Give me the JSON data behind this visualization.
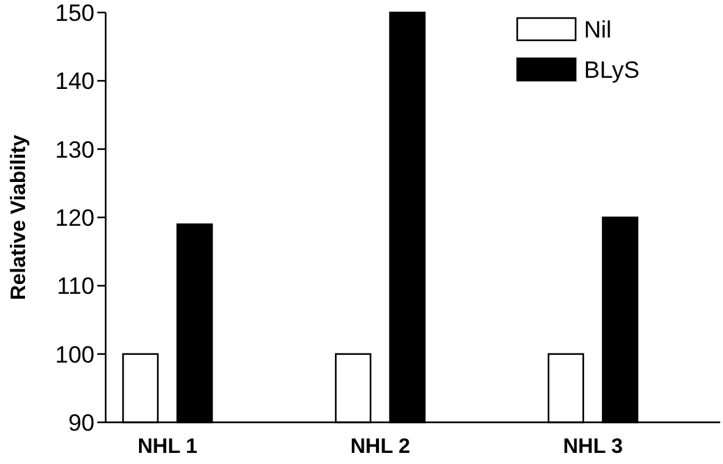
{
  "chart_data": {
    "type": "bar",
    "ylabel": "Relative Viability",
    "categories": [
      "NHL 1",
      "NHL 2",
      "NHL 3"
    ],
    "series": [
      {
        "name": "Nil",
        "color": "#ffffff",
        "values": [
          100,
          100,
          100
        ]
      },
      {
        "name": "BLyS",
        "color": "#000000",
        "values": [
          119,
          150,
          120
        ]
      }
    ],
    "ylim": [
      90,
      150
    ],
    "yticks": [
      90,
      100,
      110,
      120,
      130,
      140,
      150
    ],
    "legend": "top right",
    "grid": false
  }
}
